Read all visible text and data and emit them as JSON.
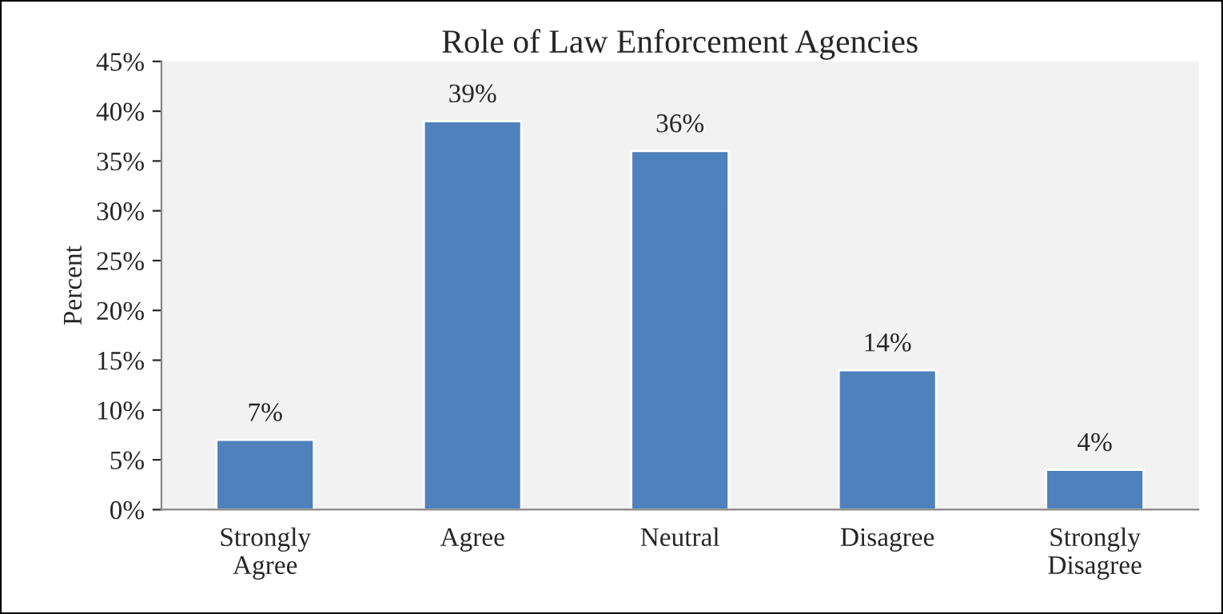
{
  "chart_data": {
    "type": "bar",
    "title": "Role of Law Enforcement Agencies",
    "ylabel": "Percent",
    "categories": [
      "Strongly\nAgree",
      "Agree",
      "Neutral",
      "Disagree",
      "Strongly\nDisagree"
    ],
    "values": [
      7,
      39,
      36,
      14,
      4
    ],
    "color": "#4f81bd",
    "value_labels": [
      "7%",
      "39%",
      "36%",
      "14%",
      "4%"
    ],
    "ylim": [
      0,
      45
    ],
    "yticks": [
      {
        "value": 0,
        "label": "0%"
      },
      {
        "value": 5,
        "label": "5%"
      },
      {
        "value": 10,
        "label": "10%"
      },
      {
        "value": 15,
        "label": "15%"
      },
      {
        "value": 20,
        "label": "20%"
      },
      {
        "value": 25,
        "label": "25%"
      },
      {
        "value": 30,
        "label": "30%"
      },
      {
        "value": 35,
        "label": "35%"
      },
      {
        "value": 40,
        "label": "40%"
      },
      {
        "value": 45,
        "label": "45%"
      }
    ],
    "grid": false,
    "legend": false
  }
}
